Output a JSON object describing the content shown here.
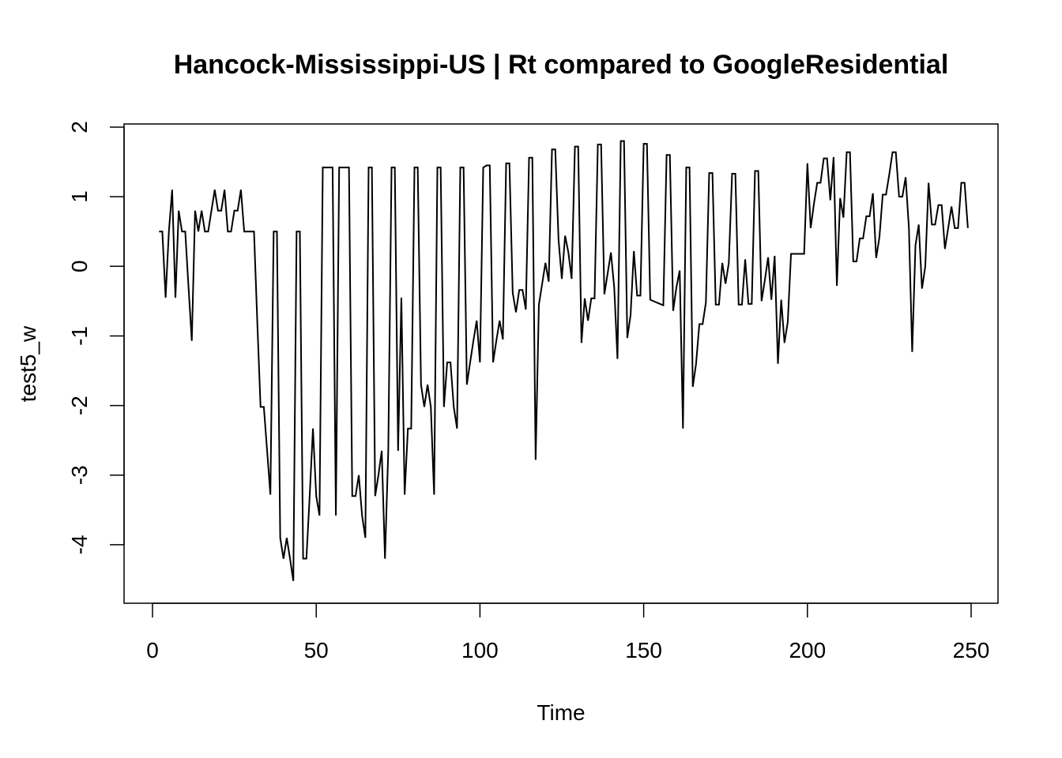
{
  "chart_data": {
    "type": "line",
    "title": "Hancock-Mississippi-US | Rt compared to GoogleResidential",
    "xlabel": "Time",
    "ylabel": "test5_w",
    "xlim": [
      0,
      250
    ],
    "ylim": [
      -4.5,
      2
    ],
    "x_ticks": [
      0,
      50,
      100,
      150,
      200,
      250
    ],
    "y_ticks": [
      -4,
      -3,
      -2,
      -1,
      0,
      1,
      2
    ],
    "grid": false,
    "legend": "none",
    "color": "#000000",
    "x_start": 2,
    "values": [
      0.5,
      0.5,
      -0.45,
      0.5,
      1.1,
      -0.45,
      0.8,
      0.5,
      0.5,
      -0.3,
      -1.07,
      0.8,
      0.5,
      0.8,
      0.5,
      0.5,
      0.8,
      1.1,
      0.8,
      0.8,
      1.1,
      0.5,
      0.5,
      0.8,
      0.8,
      1.1,
      0.5,
      0.5,
      0.5,
      0.5,
      -0.8,
      -2.02,
      -2.02,
      -2.65,
      -3.28,
      0.5,
      0.5,
      -3.9,
      -4.2,
      -3.9,
      -4.2,
      -4.52,
      0.5,
      0.5,
      -4.2,
      -4.2,
      -3.3,
      -2.33,
      -3.3,
      -3.58,
      1.42,
      1.42,
      1.42,
      1.42,
      -3.58,
      1.42,
      1.42,
      1.42,
      1.42,
      -3.3,
      -3.3,
      -3.0,
      -3.58,
      -3.9,
      1.42,
      1.42,
      -3.3,
      -3.0,
      -2.65,
      -4.2,
      -2.65,
      1.42,
      1.42,
      -2.65,
      -0.45,
      -3.28,
      -2.33,
      -2.33,
      1.42,
      1.42,
      -1.7,
      -2.02,
      -1.7,
      -2.02,
      -3.28,
      1.42,
      1.42,
      -2.02,
      -1.38,
      -1.38,
      -2.02,
      -2.33,
      1.42,
      1.42,
      -1.7,
      -1.38,
      -1.07,
      -0.78,
      -1.38,
      1.42,
      1.45,
      1.45,
      -1.38,
      -1.07,
      -0.78,
      -1.05,
      1.48,
      1.48,
      -0.38,
      -0.66,
      -0.34,
      -0.34,
      -0.62,
      1.56,
      1.56,
      -2.78,
      -0.55,
      -0.25,
      0.05,
      -0.22,
      1.68,
      1.68,
      0.38,
      -0.18,
      0.44,
      0.2,
      -0.18,
      1.72,
      1.72,
      -1.1,
      -0.46,
      -0.78,
      -0.46,
      -0.46,
      1.75,
      1.75,
      -0.4,
      -0.1,
      0.2,
      -0.3,
      -1.33,
      1.8,
      1.8,
      -1.03,
      -0.7,
      0.22,
      -0.42,
      -0.42,
      1.76,
      1.76,
      -0.48,
      -0.5,
      -0.52,
      -0.54,
      -0.56,
      1.6,
      1.6,
      -0.64,
      -0.3,
      -0.06,
      -2.33,
      1.42,
      1.42,
      -1.73,
      -1.4,
      -0.83,
      -0.83,
      -0.52,
      1.34,
      1.34,
      -0.55,
      -0.55,
      0.05,
      -0.25,
      0.05,
      1.33,
      1.33,
      -0.55,
      -0.55,
      0.1,
      -0.54,
      -0.54,
      1.37,
      1.37,
      -0.5,
      -0.2,
      0.13,
      -0.48,
      0.15,
      -1.4,
      -0.48,
      -1.1,
      -0.8,
      0.18,
      0.18,
      0.18,
      0.18,
      0.18,
      1.48,
      0.55,
      0.9,
      1.2,
      1.2,
      1.55,
      1.55,
      0.95,
      1.57,
      -0.28,
      0.98,
      0.7,
      1.64,
      1.64,
      0.07,
      0.07,
      0.4,
      0.4,
      0.72,
      0.72,
      1.05,
      0.12,
      0.42,
      1.03,
      1.03,
      1.32,
      1.64,
      1.64,
      1.0,
      1.0,
      1.28,
      0.55,
      -1.23,
      0.3,
      0.6,
      -0.32,
      0.0,
      1.2,
      0.6,
      0.6,
      0.88,
      0.88,
      0.25,
      0.55,
      0.86,
      0.55,
      0.55,
      1.2,
      1.2,
      0.55
    ]
  }
}
